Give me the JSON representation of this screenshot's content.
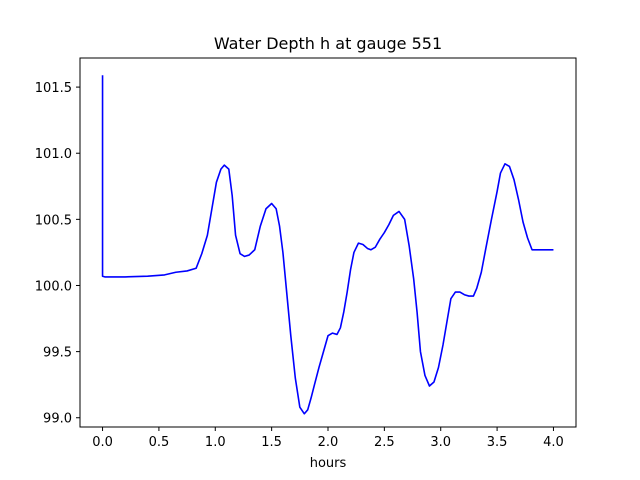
{
  "chart_data": {
    "type": "line",
    "title": "Water Depth h at gauge 551",
    "xlabel": "hours",
    "ylabel": "",
    "xlim": [
      -0.2,
      4.2
    ],
    "ylim": [
      98.93,
      101.72
    ],
    "xticks": [
      0.0,
      0.5,
      1.0,
      1.5,
      2.0,
      2.5,
      3.0,
      3.5,
      4.0
    ],
    "xtick_labels": [
      "0.0",
      "0.5",
      "1.0",
      "1.5",
      "2.0",
      "2.5",
      "3.0",
      "3.5",
      "4.0"
    ],
    "yticks": [
      99.0,
      99.5,
      100.0,
      100.5,
      101.0,
      101.5
    ],
    "ytick_labels": [
      "99.0",
      "99.5",
      "100.0",
      "100.5",
      "101.0",
      "101.5"
    ],
    "grid": false,
    "series": [
      {
        "color": "#0000ff",
        "x": [
          0.0,
          0.0,
          0.02,
          0.2,
          0.4,
          0.55,
          0.65,
          0.75,
          0.83,
          0.88,
          0.93,
          0.97,
          1.01,
          1.05,
          1.08,
          1.12,
          1.15,
          1.18,
          1.22,
          1.26,
          1.3,
          1.35,
          1.4,
          1.45,
          1.5,
          1.54,
          1.57,
          1.6,
          1.63,
          1.67,
          1.71,
          1.75,
          1.79,
          1.82,
          1.85,
          1.88,
          1.92,
          1.96,
          2.0,
          2.04,
          2.08,
          2.11,
          2.14,
          2.17,
          2.2,
          2.23,
          2.27,
          2.31,
          2.35,
          2.38,
          2.42,
          2.46,
          2.5,
          2.54,
          2.58,
          2.63,
          2.68,
          2.72,
          2.76,
          2.79,
          2.82,
          2.86,
          2.9,
          2.94,
          2.98,
          3.02,
          3.06,
          3.09,
          3.13,
          3.17,
          3.21,
          3.25,
          3.29,
          3.32,
          3.36,
          3.4,
          3.45,
          3.5,
          3.53,
          3.57,
          3.61,
          3.65,
          3.69,
          3.73,
          3.77,
          3.81,
          3.84,
          3.87,
          3.9,
          3.93,
          3.96,
          4.0
        ],
        "y": [
          101.59,
          100.07,
          100.065,
          100.065,
          100.07,
          100.08,
          100.1,
          100.11,
          100.13,
          100.24,
          100.38,
          100.58,
          100.78,
          100.88,
          100.91,
          100.88,
          100.68,
          100.38,
          100.24,
          100.22,
          100.23,
          100.27,
          100.45,
          100.58,
          100.62,
          100.58,
          100.45,
          100.25,
          99.98,
          99.62,
          99.3,
          99.08,
          99.03,
          99.06,
          99.15,
          99.25,
          99.38,
          99.5,
          99.62,
          99.64,
          99.63,
          99.68,
          99.8,
          99.95,
          100.12,
          100.25,
          100.32,
          100.31,
          100.28,
          100.27,
          100.29,
          100.35,
          100.4,
          100.46,
          100.53,
          100.56,
          100.5,
          100.3,
          100.05,
          99.8,
          99.5,
          99.32,
          99.24,
          99.27,
          99.38,
          99.55,
          99.75,
          99.9,
          99.95,
          99.95,
          99.93,
          99.92,
          99.92,
          99.98,
          100.1,
          100.28,
          100.5,
          100.71,
          100.85,
          100.92,
          100.9,
          100.8,
          100.65,
          100.48,
          100.36,
          100.27,
          100.27,
          100.27,
          100.27,
          100.27,
          100.27,
          100.27
        ]
      }
    ]
  }
}
